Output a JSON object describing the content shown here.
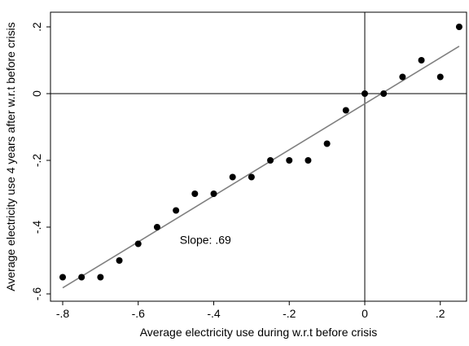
{
  "chart_data": {
    "type": "scatter",
    "title": "",
    "xlabel": "Average electricity use during w.r.t before crisis",
    "ylabel": "Average electricity use 4 years after w.r.t before crisis",
    "xlim": [
      -0.82,
      0.27
    ],
    "ylim": [
      -0.63,
      0.22
    ],
    "xticks": [
      -0.8,
      -0.6,
      -0.4,
      -0.2,
      0,
      0.2
    ],
    "xtick_labels": [
      "-.8",
      "-.6",
      "-.4",
      "-.2",
      "0",
      ".2"
    ],
    "yticks": [
      -0.6,
      -0.4,
      -0.2,
      0,
      0.2
    ],
    "ytick_labels": [
      "-.6",
      "-.4",
      "-.2",
      "0",
      ".2"
    ],
    "grid": false,
    "reference_lines": {
      "x": 0,
      "y": 0
    },
    "series": [
      {
        "points": [
          {
            "x": -0.8,
            "y": -0.55
          },
          {
            "x": -0.75,
            "y": -0.55
          },
          {
            "x": -0.7,
            "y": -0.55
          },
          {
            "x": -0.65,
            "y": -0.5
          },
          {
            "x": -0.6,
            "y": -0.45
          },
          {
            "x": -0.55,
            "y": -0.4
          },
          {
            "x": -0.5,
            "y": -0.35
          },
          {
            "x": -0.45,
            "y": -0.3
          },
          {
            "x": -0.4,
            "y": -0.3
          },
          {
            "x": -0.35,
            "y": -0.25
          },
          {
            "x": -0.3,
            "y": -0.25
          },
          {
            "x": -0.25,
            "y": -0.2
          },
          {
            "x": -0.2,
            "y": -0.2
          },
          {
            "x": -0.15,
            "y": -0.2
          },
          {
            "x": -0.1,
            "y": -0.15
          },
          {
            "x": -0.05,
            "y": -0.05
          },
          {
            "x": 0.0,
            "y": 0.0
          },
          {
            "x": 0.05,
            "y": 0.0
          },
          {
            "x": 0.1,
            "y": 0.05
          },
          {
            "x": 0.15,
            "y": 0.1
          },
          {
            "x": 0.2,
            "y": 0.05
          },
          {
            "x": 0.25,
            "y": 0.2
          }
        ],
        "color": "#000000"
      }
    ],
    "fit_line": {
      "x": [
        -0.8,
        0.25
      ],
      "y": [
        -0.582,
        0.142
      ],
      "color": "#808080"
    },
    "annotation": {
      "text": "Slope: .69",
      "x": -0.49,
      "y": -0.45
    }
  }
}
